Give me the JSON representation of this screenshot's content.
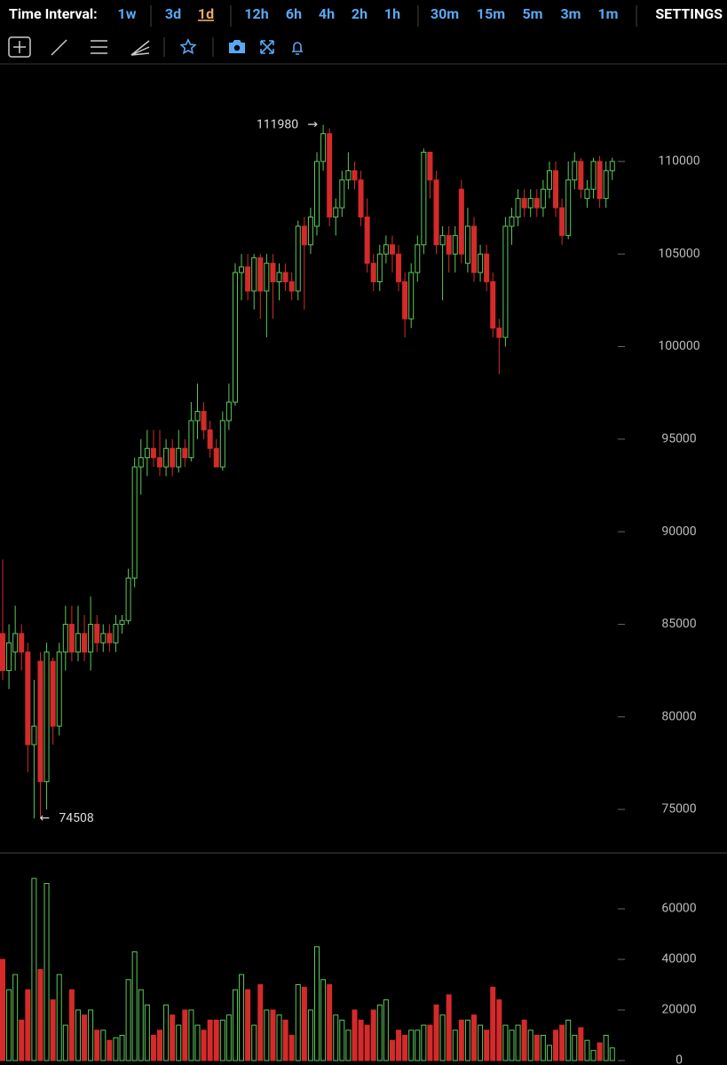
{
  "toolbar": {
    "label": "Time Interval:",
    "intervals": [
      {
        "label": "1w",
        "selected": false
      },
      {
        "label": "3d",
        "selected": false
      },
      {
        "label": "1d",
        "selected": true
      },
      {
        "label": "12h",
        "selected": false
      },
      {
        "label": "6h",
        "selected": false
      },
      {
        "label": "4h",
        "selected": false
      },
      {
        "label": "2h",
        "selected": false
      },
      {
        "label": "1h",
        "selected": false
      },
      {
        "label": "30m",
        "selected": false
      },
      {
        "label": "15m",
        "selected": false
      },
      {
        "label": "5m",
        "selected": false
      },
      {
        "label": "3m",
        "selected": false
      },
      {
        "label": "1m",
        "selected": false
      }
    ],
    "settings": "SETTINGS"
  },
  "chart_data": [
    {
      "type": "candlestick",
      "open": [
        84500,
        82500,
        83500,
        84500,
        83500,
        78500,
        83000,
        76500,
        83000,
        79500,
        83500,
        85000,
        83500,
        84500,
        83500,
        85000,
        84000,
        84500,
        84000,
        85000,
        85200,
        87500,
        93500,
        94000,
        94500,
        94000,
        93500,
        94500,
        93500,
        94500,
        94000,
        96000,
        96500,
        95500,
        94500,
        93500,
        96000,
        97000,
        104000,
        104300,
        103000,
        104800,
        103000,
        104500,
        103500,
        104000,
        103500,
        103000,
        106500,
        105500,
        106500,
        110000,
        111500,
        107000,
        107500,
        109000,
        109500,
        109000,
        107000,
        104500,
        103500,
        105000,
        105500,
        105000,
        103500,
        101500,
        104000,
        105500,
        110500,
        109000,
        105500,
        106000,
        105000,
        108500,
        104500,
        106500,
        104000,
        105000,
        103500,
        101000,
        100500,
        106500,
        107000,
        108000,
        107500,
        108000,
        107500,
        108500,
        109500,
        107500,
        106000,
        109000,
        110000,
        108000,
        108500,
        110000,
        108000,
        109500
      ],
      "high": [
        88500,
        85000,
        86000,
        85000,
        84000,
        82000,
        83500,
        84000,
        83200,
        84000,
        86000,
        86000,
        86000,
        85500,
        86500,
        85500,
        85000,
        85000,
        85500,
        85500,
        88000,
        94000,
        95000,
        95500,
        95500,
        95500,
        95000,
        95000,
        95500,
        95000,
        97000,
        98000,
        97000,
        96000,
        95000,
        96500,
        98000,
        104500,
        105000,
        105000,
        105000,
        105000,
        105000,
        105000,
        104500,
        104500,
        104000,
        106800,
        107000,
        107500,
        110500,
        111980,
        111800,
        108000,
        109500,
        110500,
        110000,
        109500,
        108000,
        105000,
        105500,
        106000,
        106000,
        105500,
        104000,
        104500,
        106000,
        110700,
        110500,
        109500,
        106500,
        106500,
        106500,
        109000,
        107500,
        107000,
        105500,
        105500,
        104000,
        101500,
        107000,
        107500,
        108500,
        108500,
        108500,
        108500,
        109000,
        110000,
        110000,
        108000,
        110000,
        110500,
        110200,
        109000,
        110200,
        110300,
        110000,
        110200
      ],
      "low": [
        82000,
        81500,
        82500,
        82500,
        77000,
        74508,
        74600,
        75000,
        78500,
        79000,
        82500,
        83000,
        83000,
        83000,
        82500,
        83500,
        83500,
        83500,
        83500,
        84500,
        85000,
        87000,
        92000,
        93000,
        93500,
        93000,
        93000,
        93000,
        93200,
        93500,
        93800,
        95000,
        95000,
        94000,
        93500,
        93300,
        95500,
        96800,
        102500,
        102500,
        102000,
        101500,
        100500,
        101500,
        102500,
        103000,
        102500,
        102500,
        102000,
        105000,
        106000,
        109500,
        106500,
        106000,
        107000,
        108500,
        108500,
        106500,
        104000,
        103000,
        103000,
        104500,
        104000,
        103000,
        100500,
        101000,
        103500,
        105000,
        108000,
        105000,
        102500,
        104000,
        104000,
        104500,
        104000,
        103500,
        103500,
        103000,
        100500,
        98500,
        100000,
        105500,
        106500,
        107000,
        107000,
        107000,
        107000,
        108000,
        107000,
        105500,
        105800,
        108500,
        108000,
        107500,
        108000,
        107500,
        107500,
        109000
      ],
      "close": [
        82500,
        84000,
        84500,
        83500,
        78500,
        79500,
        76500,
        83500,
        79500,
        83500,
        85000,
        83500,
        84500,
        83500,
        85000,
        84000,
        84500,
        84000,
        85000,
        85200,
        87500,
        93500,
        94000,
        94500,
        94000,
        93500,
        94500,
        93500,
        94500,
        94000,
        96000,
        96500,
        95500,
        94500,
        93500,
        96000,
        97000,
        104000,
        104300,
        103000,
        104800,
        103000,
        104500,
        103500,
        104000,
        103500,
        103000,
        106500,
        105500,
        107000,
        110000,
        111500,
        107000,
        107500,
        109000,
        109500,
        109000,
        107000,
        104500,
        103500,
        105000,
        105500,
        105000,
        103500,
        101500,
        104000,
        105500,
        110500,
        109000,
        105500,
        106000,
        105000,
        106000,
        105000,
        106500,
        104000,
        105000,
        103500,
        101000,
        100500,
        106500,
        107000,
        108000,
        107500,
        108000,
        107500,
        108500,
        109500,
        107500,
        106000,
        109000,
        110000,
        108500,
        108500,
        110000,
        108000,
        109500,
        110000
      ],
      "up_color": "#5cc95c",
      "down_color": "#d42a2a",
      "ylim": [
        72700,
        115270
      ],
      "yticks": [
        75000,
        80000,
        85000,
        90000,
        95000,
        100000,
        105000,
        110000
      ],
      "grid": false,
      "annotations": {
        "high": {
          "text": "111980",
          "arrow": "→"
        },
        "low": {
          "arrow": "←",
          "text": "74508"
        }
      }
    },
    {
      "type": "bar",
      "values": [
        40000,
        28000,
        34000,
        16000,
        28000,
        72000,
        36000,
        70000,
        24000,
        34000,
        14000,
        28000,
        20000,
        18000,
        20000,
        12000,
        12000,
        8000,
        9000,
        10000,
        32000,
        43000,
        28000,
        22000,
        10000,
        12000,
        22000,
        18000,
        14000,
        20000,
        20000,
        14000,
        12000,
        16000,
        16000,
        16000,
        18000,
        28000,
        34000,
        28000,
        14000,
        30000,
        20000,
        20000,
        18000,
        16000,
        10000,
        30000,
        29000,
        20000,
        45000,
        32000,
        30000,
        18000,
        16000,
        12000,
        20000,
        16000,
        14000,
        20000,
        22000,
        24000,
        8000,
        12000,
        10000,
        12000,
        12000,
        14000,
        14000,
        22000,
        18000,
        26000,
        12000,
        16000,
        16000,
        18000,
        14000,
        12000,
        29000,
        24000,
        14000,
        12000,
        14000,
        16000,
        12000,
        10000,
        10000,
        6000,
        12000,
        14000,
        16000,
        10000,
        13000,
        8000,
        4000,
        7000,
        10000,
        5000
      ],
      "ylim": [
        0,
        81750
      ],
      "yticks": [
        0,
        20000,
        40000,
        60000
      ],
      "grid": false
    }
  ]
}
